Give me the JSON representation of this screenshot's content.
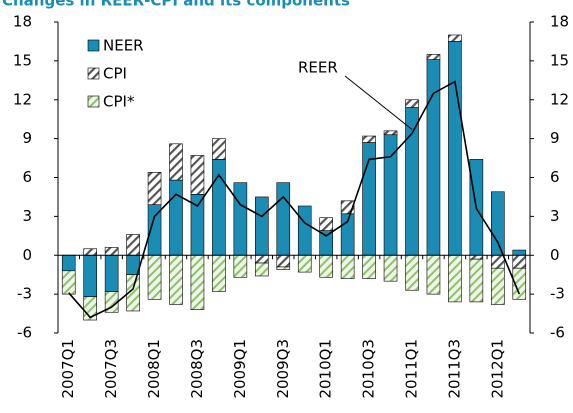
{
  "chart_data": {
    "type": "bar",
    "stacked": true,
    "title": "Changes in REER-CPI and its components",
    "categories": [
      "2007Q1",
      null,
      "2007Q3",
      null,
      "2008Q1",
      null,
      "2008Q3",
      null,
      "2009Q1",
      null,
      "2009Q3",
      null,
      "2010Q1",
      null,
      "2010Q3",
      null,
      "2011Q1",
      null,
      "2011Q3",
      null,
      "2012Q1",
      null
    ],
    "series": [
      {
        "name": "NEER",
        "color": "#1b8db5",
        "pattern": "solid",
        "values": [
          -1.2,
          -3.2,
          -2.8,
          -1.5,
          3.9,
          5.8,
          4.7,
          7.4,
          5.6,
          4.5,
          5.6,
          3.8,
          1.9,
          3.2,
          8.7,
          9.3,
          11.4,
          15.1,
          16.5,
          7.4,
          4.9,
          0.4
        ]
      },
      {
        "name": "CPI",
        "color": "#555555",
        "pattern": "hatch",
        "values": [
          0,
          0.5,
          0.6,
          1.6,
          2.5,
          2.8,
          3.0,
          1.6,
          0,
          -0.6,
          -0.9,
          0,
          1.0,
          1.0,
          0.5,
          0.3,
          0.6,
          0.4,
          0.5,
          -0.3,
          -1.0,
          -1.0
        ]
      },
      {
        "name": "CPI*",
        "color": "#8fbf6f",
        "pattern": "hatch",
        "values": [
          -1.8,
          -1.8,
          -1.6,
          -2.8,
          -3.4,
          -3.8,
          -4.2,
          -2.8,
          -1.7,
          -1.0,
          -0.2,
          -1.3,
          -1.7,
          -1.8,
          -1.8,
          -2.0,
          -2.7,
          -3.0,
          -3.6,
          -3.3,
          -2.8,
          -2.4
        ]
      }
    ],
    "line": {
      "name": "REER",
      "color": "#000000",
      "values": [
        -2.9,
        -4.8,
        -4.0,
        -2.6,
        3.0,
        4.7,
        3.8,
        6.2,
        3.9,
        3.0,
        4.5,
        2.5,
        1.5,
        2.6,
        7.4,
        7.6,
        9.4,
        12.5,
        13.4,
        3.6,
        1.0,
        -3.0
      ]
    },
    "annotation": "REER",
    "ylim": [
      -6,
      18
    ],
    "yticks": [
      -6,
      -3,
      0,
      3,
      6,
      9,
      12,
      15,
      18
    ],
    "y2lim": [
      -6,
      18
    ],
    "y2ticks": [
      -6,
      -3,
      0,
      3,
      6,
      9,
      12,
      15,
      18
    ],
    "legend": "upper left"
  }
}
